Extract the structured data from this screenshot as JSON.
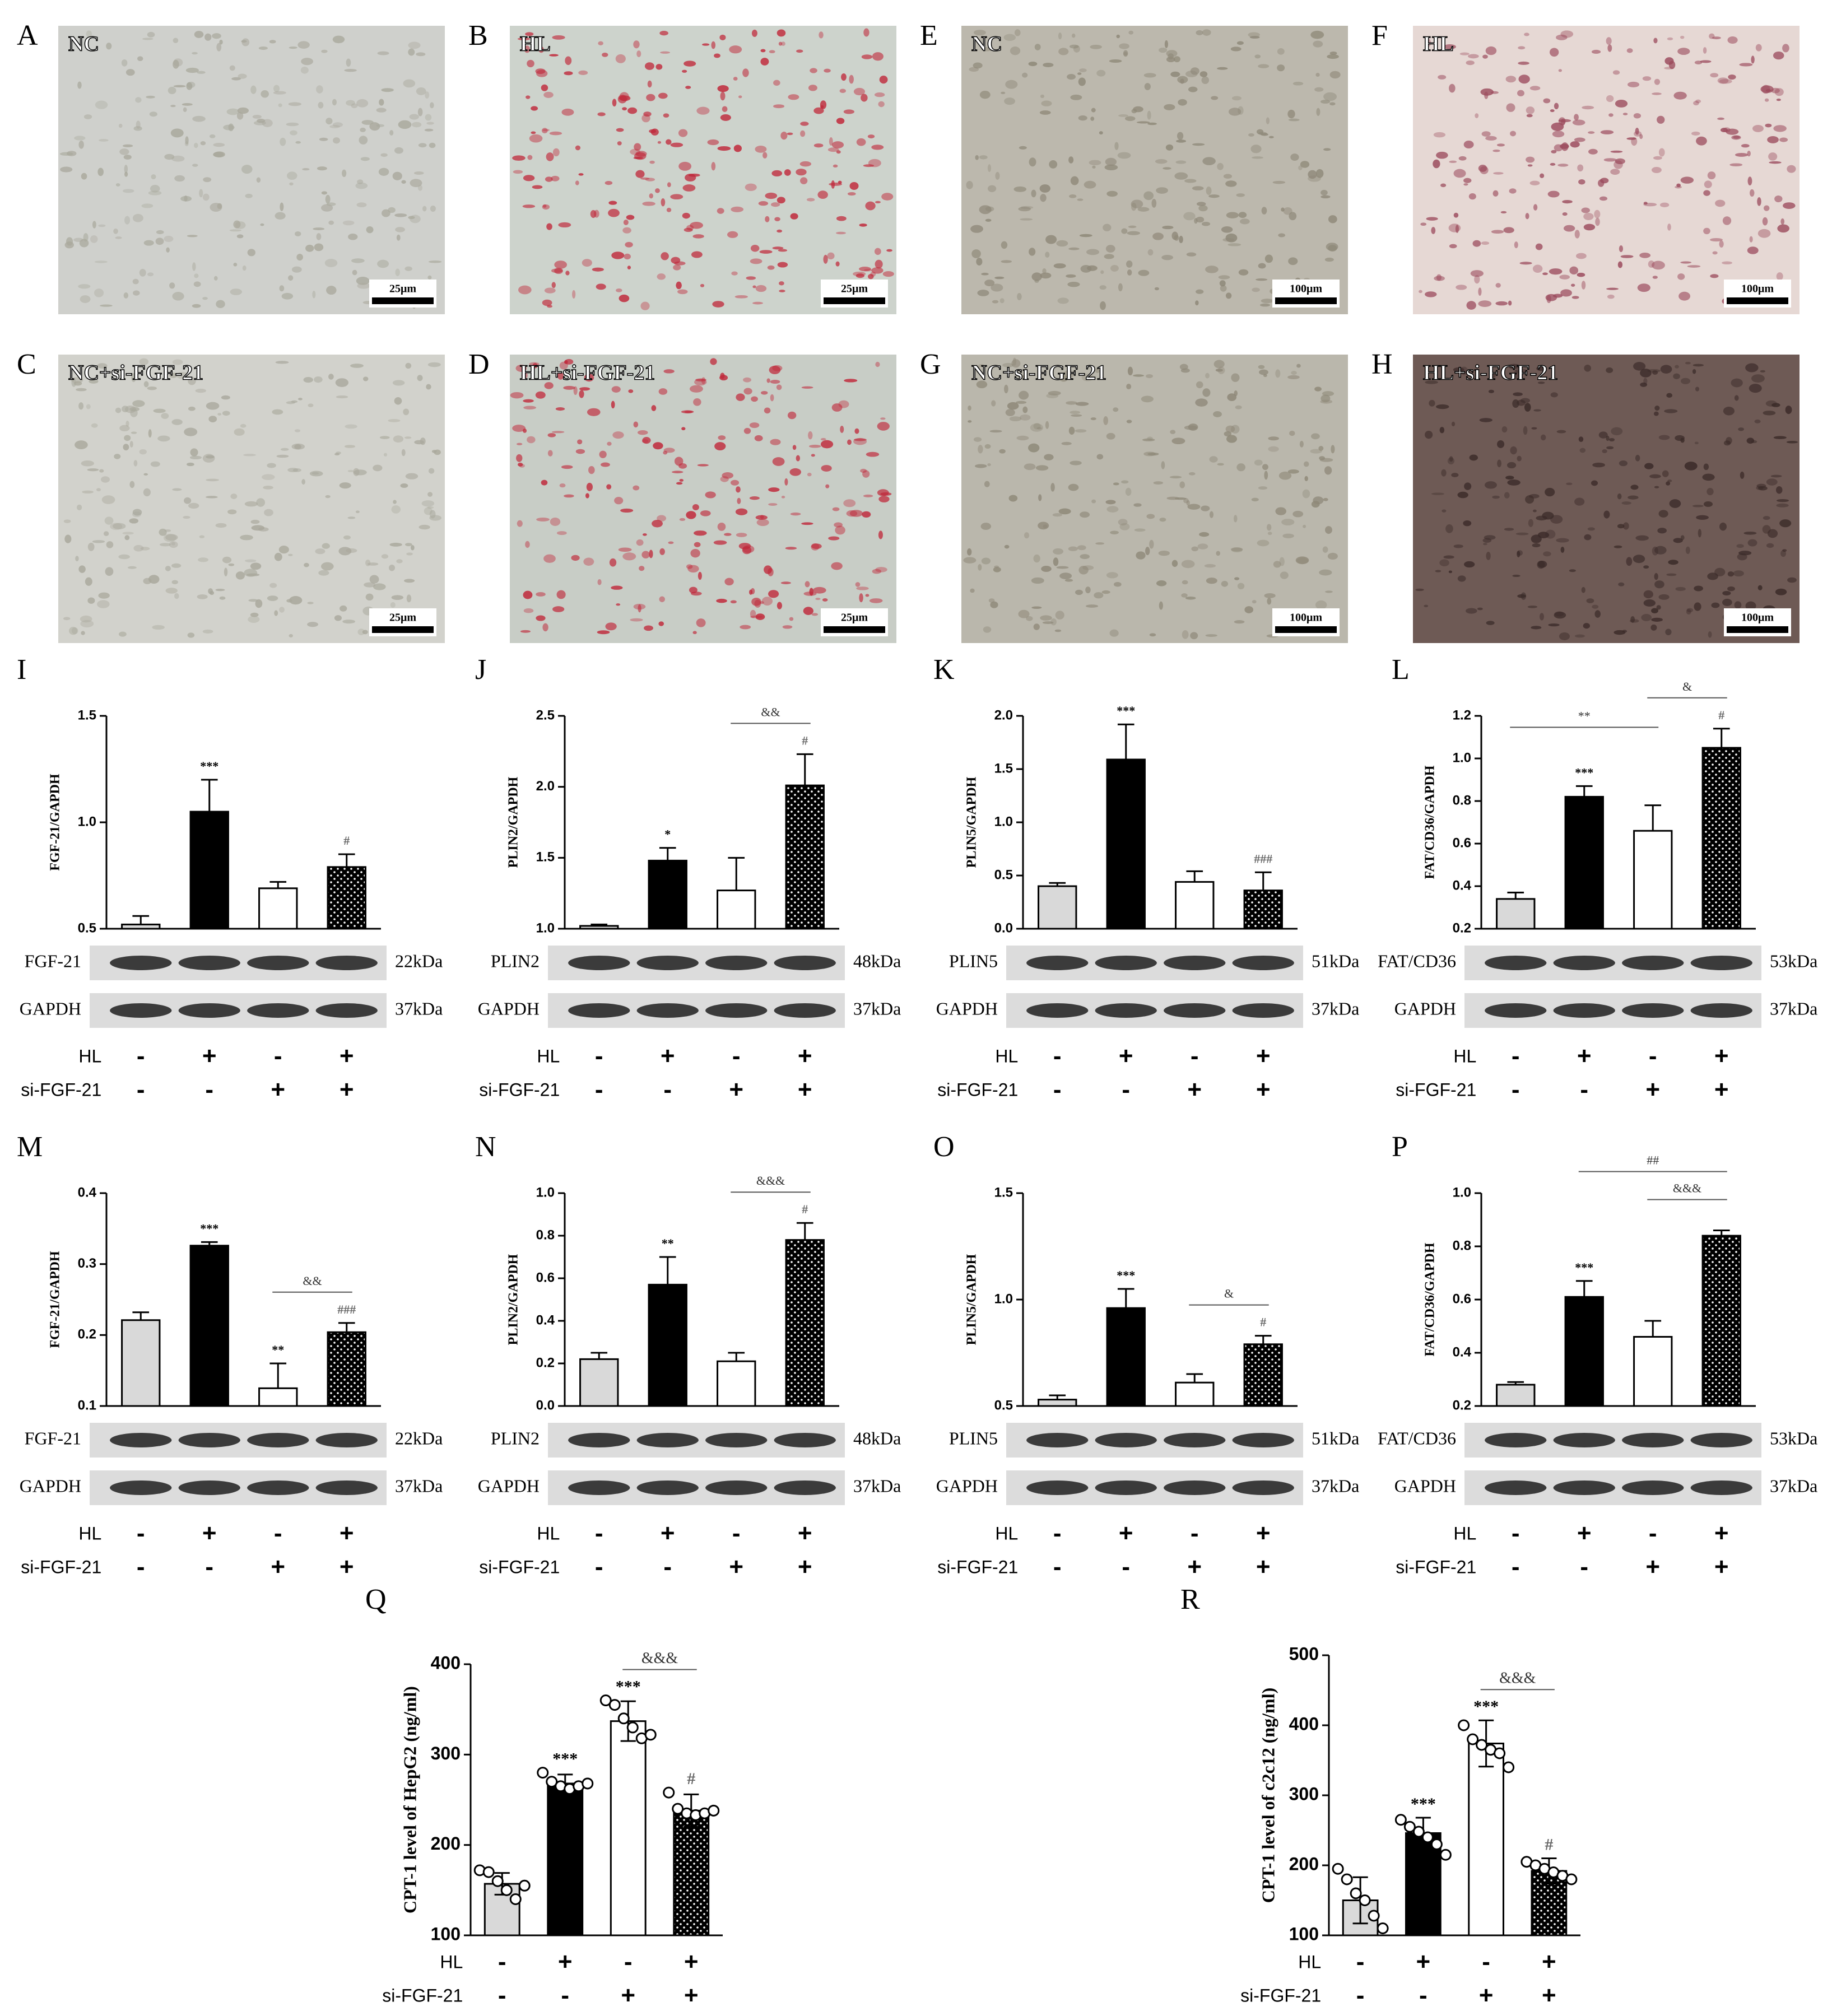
{
  "images": [
    {
      "letter": "A",
      "label": "NC",
      "scale_bar": "25μm"
    },
    {
      "letter": "B",
      "label": "HL",
      "scale_bar": "25μm"
    },
    {
      "letter": "E",
      "label": "NC",
      "scale_bar": "100μm"
    },
    {
      "letter": "F",
      "label": "HL",
      "scale_bar": "100μm"
    },
    {
      "letter": "C",
      "label": "NC+si-FGF-21",
      "scale_bar": "25μm"
    },
    {
      "letter": "D",
      "label": "HL+si-FGF-21",
      "scale_bar": "25μm"
    },
    {
      "letter": "G",
      "label": "NC+si-FGF-21",
      "scale_bar": "100μm"
    },
    {
      "letter": "H",
      "label": "HL+si-FGF-21",
      "scale_bar": "100μm"
    }
  ],
  "chart_data": [
    {
      "type": "bar",
      "letter": "I",
      "y_label": "FGF-21/GAPDH",
      "ylim": [
        0.5,
        1.5
      ],
      "yticks": [
        0.5,
        {
          "value": 1,
          "label": "1.0"
        },
        1.5
      ],
      "values": [
        0.52,
        1.05,
        0.69,
        0.79
      ],
      "errors": [
        0.04,
        0.15,
        0.03,
        0.06
      ],
      "fills": [
        "#d9d9d9",
        "#000000",
        "#ffffff",
        "#000000"
      ],
      "hatch": [
        false,
        false,
        false,
        true
      ],
      "above": [
        null,
        "***",
        null,
        "#"
      ],
      "brackets": [],
      "blots": [
        {
          "name": "FGF-21",
          "size": "22kDa"
        },
        {
          "name": "GAPDH",
          "size": "37kDa"
        }
      ],
      "conditions": [
        {
          "name": "HL",
          "marks": [
            "-",
            "+",
            "-",
            "+"
          ]
        },
        {
          "name": "si-FGF-21",
          "marks": [
            "-",
            "-",
            "+",
            "+"
          ]
        }
      ]
    },
    {
      "type": "bar",
      "letter": "J",
      "y_label": "PLIN2/GAPDH",
      "ylim": [
        1,
        2.5
      ],
      "yticks": [
        {
          "value": 1,
          "label": "1.0"
        },
        1.5,
        {
          "value": 2,
          "label": "2.0"
        },
        2.5
      ],
      "values": [
        1.02,
        1.48,
        1.27,
        2.01
      ],
      "errors": [
        0.01,
        0.09,
        0.23,
        0.22
      ],
      "fills": [
        "#d9d9d9",
        "#000000",
        "#ffffff",
        "#000000"
      ],
      "hatch": [
        false,
        false,
        false,
        true
      ],
      "above": [
        null,
        "*",
        null,
        "#"
      ],
      "brackets": [
        {
          "from": 2,
          "to": 3,
          "text": "&&"
        }
      ],
      "blots": [
        {
          "name": "PLIN2",
          "size": "48kDa"
        },
        {
          "name": "GAPDH",
          "size": "37kDa"
        }
      ],
      "conditions": [
        {
          "name": "HL",
          "marks": [
            "-",
            "+",
            "-",
            "+"
          ]
        },
        {
          "name": "si-FGF-21",
          "marks": [
            "-",
            "-",
            "+",
            "+"
          ]
        }
      ]
    },
    {
      "type": "bar",
      "letter": "K",
      "y_label": "PLIN5/GAPDH",
      "ylim": [
        0,
        2
      ],
      "yticks": [
        {
          "value": 0,
          "label": "0.0"
        },
        0.5,
        {
          "value": 1,
          "label": "1.0"
        },
        1.5,
        {
          "value": 2,
          "label": "2.0"
        }
      ],
      "values": [
        0.4,
        1.59,
        0.44,
        0.36
      ],
      "errors": [
        0.03,
        0.33,
        0.1,
        0.17
      ],
      "fills": [
        "#d9d9d9",
        "#000000",
        "#ffffff",
        "#000000"
      ],
      "hatch": [
        false,
        false,
        false,
        true
      ],
      "above": [
        null,
        "***",
        null,
        "###"
      ],
      "brackets": [],
      "blots": [
        {
          "name": "PLIN5",
          "size": "51kDa"
        },
        {
          "name": "GAPDH",
          "size": "37kDa"
        }
      ],
      "conditions": [
        {
          "name": "HL",
          "marks": [
            "-",
            "+",
            "-",
            "+"
          ]
        },
        {
          "name": "si-FGF-21",
          "marks": [
            "-",
            "-",
            "+",
            "+"
          ]
        }
      ]
    },
    {
      "type": "bar",
      "letter": "L",
      "y_label": "FAT/CD36/GAPDH",
      "ylim": [
        0.2,
        1.2
      ],
      "yticks": [
        0.2,
        0.4,
        0.6,
        0.8,
        {
          "value": 1,
          "label": "1.0"
        },
        1.2
      ],
      "values": [
        0.34,
        0.82,
        0.66,
        1.05
      ],
      "errors": [
        0.03,
        0.05,
        0.12,
        0.09
      ],
      "fills": [
        "#d9d9d9",
        "#000000",
        "#ffffff",
        "#000000"
      ],
      "hatch": [
        false,
        false,
        false,
        true
      ],
      "above": [
        null,
        "***",
        null,
        "#"
      ],
      "brackets": [
        {
          "from": 0,
          "to": 2,
          "text": "**"
        },
        {
          "from": 2,
          "to": 3,
          "text": "&"
        }
      ],
      "blots": [
        {
          "name": "FAT/CD36",
          "size": "53kDa"
        },
        {
          "name": "GAPDH",
          "size": "37kDa"
        }
      ],
      "conditions": [
        {
          "name": "HL",
          "marks": [
            "-",
            "+",
            "-",
            "+"
          ]
        },
        {
          "name": "si-FGF-21",
          "marks": [
            "-",
            "-",
            "+",
            "+"
          ]
        }
      ]
    },
    {
      "type": "bar",
      "letter": "M",
      "y_label": "FGF-21/GAPDH",
      "ylim": [
        0.1,
        0.4
      ],
      "yticks": [
        0.1,
        0.2,
        0.3,
        0.4
      ],
      "values": [
        0.221,
        0.326,
        0.125,
        0.204
      ],
      "errors": [
        0.011,
        0.005,
        0.035,
        0.013
      ],
      "fills": [
        "#d9d9d9",
        "#000000",
        "#ffffff",
        "#000000"
      ],
      "hatch": [
        false,
        false,
        false,
        true
      ],
      "above": [
        null,
        "***",
        "**",
        "###"
      ],
      "brackets": [
        {
          "from": 2,
          "to": 3,
          "text": "&&"
        }
      ],
      "blots": [
        {
          "name": "FGF-21",
          "size": "22kDa"
        },
        {
          "name": "GAPDH",
          "size": "37kDa"
        }
      ],
      "conditions": [
        {
          "name": "HL",
          "marks": [
            "-",
            "+",
            "-",
            "+"
          ]
        },
        {
          "name": "si-FGF-21",
          "marks": [
            "-",
            "-",
            "+",
            "+"
          ]
        }
      ]
    },
    {
      "type": "bar",
      "letter": "N",
      "y_label": "PLIN2/GAPDH",
      "ylim": [
        0,
        1
      ],
      "yticks": [
        {
          "value": 0,
          "label": "0.0"
        },
        0.2,
        0.4,
        0.6,
        0.8,
        {
          "value": 1,
          "label": "1.0"
        }
      ],
      "values": [
        0.22,
        0.57,
        0.21,
        0.78
      ],
      "errors": [
        0.03,
        0.13,
        0.04,
        0.08
      ],
      "fills": [
        "#d9d9d9",
        "#000000",
        "#ffffff",
        "#000000"
      ],
      "hatch": [
        false,
        false,
        false,
        true
      ],
      "above": [
        null,
        "**",
        null,
        "#"
      ],
      "brackets": [
        {
          "from": 2,
          "to": 3,
          "text": "&&&"
        }
      ],
      "blots": [
        {
          "name": "PLIN2",
          "size": "48kDa"
        },
        {
          "name": "GAPDH",
          "size": "37kDa"
        }
      ],
      "conditions": [
        {
          "name": "HL",
          "marks": [
            "-",
            "+",
            "-",
            "+"
          ]
        },
        {
          "name": "si-FGF-21",
          "marks": [
            "-",
            "-",
            "+",
            "+"
          ]
        }
      ]
    },
    {
      "type": "bar",
      "letter": "O",
      "y_label": "PLIN5/GAPDH",
      "ylim": [
        0.5,
        1.5
      ],
      "yticks": [
        0.5,
        {
          "value": 1,
          "label": "1.0"
        },
        1.5
      ],
      "values": [
        0.53,
        0.96,
        0.61,
        0.79
      ],
      "errors": [
        0.02,
        0.09,
        0.04,
        0.04
      ],
      "fills": [
        "#d9d9d9",
        "#000000",
        "#ffffff",
        "#000000"
      ],
      "hatch": [
        false,
        false,
        false,
        true
      ],
      "above": [
        null,
        "***",
        null,
        "#"
      ],
      "brackets": [
        {
          "from": 2,
          "to": 3,
          "text": "&"
        }
      ],
      "blots": [
        {
          "name": "PLIN5",
          "size": "51kDa"
        },
        {
          "name": "GAPDH",
          "size": "37kDa"
        }
      ],
      "conditions": [
        {
          "name": "HL",
          "marks": [
            "-",
            "+",
            "-",
            "+"
          ]
        },
        {
          "name": "si-FGF-21",
          "marks": [
            "-",
            "-",
            "+",
            "+"
          ]
        }
      ]
    },
    {
      "type": "bar",
      "letter": "P",
      "y_label": "FAT/CD36/GAPDH",
      "ylim": [
        0.2,
        1
      ],
      "yticks": [
        0.2,
        0.4,
        0.6,
        0.8,
        {
          "value": 1,
          "label": "1.0"
        }
      ],
      "values": [
        0.28,
        0.61,
        0.46,
        0.84
      ],
      "errors": [
        0.01,
        0.06,
        0.06,
        0.02
      ],
      "fills": [
        "#d9d9d9",
        "#000000",
        "#ffffff",
        "#000000"
      ],
      "hatch": [
        false,
        false,
        false,
        true
      ],
      "above": [
        null,
        "***",
        null,
        null
      ],
      "brackets": [
        {
          "from": 1,
          "to": 3,
          "text": "##"
        },
        {
          "from": 2,
          "to": 3,
          "text": "&&&"
        }
      ],
      "blots": [
        {
          "name": "FAT/CD36",
          "size": "53kDa"
        },
        {
          "name": "GAPDH",
          "size": "37kDa"
        }
      ],
      "conditions": [
        {
          "name": "HL",
          "marks": [
            "-",
            "+",
            "-",
            "+"
          ]
        },
        {
          "name": "si-FGF-21",
          "marks": [
            "-",
            "-",
            "+",
            "+"
          ]
        }
      ]
    },
    {
      "type": "bar",
      "letter": "Q",
      "y_label": "CPT-1 level of HepG2 (ng/ml)",
      "ylim": [
        100,
        400
      ],
      "yticks": [
        100,
        200,
        300,
        400
      ],
      "values": [
        157,
        268,
        337,
        238
      ],
      "errors": [
        12,
        10,
        22,
        18
      ],
      "points": [
        [
          172,
          170,
          160,
          150,
          140,
          155
        ],
        [
          280,
          270,
          265,
          262,
          265,
          268
        ],
        [
          360,
          355,
          340,
          330,
          318,
          322
        ],
        [
          258,
          240,
          235,
          233,
          235,
          238
        ]
      ],
      "fills": [
        "#d9d9d9",
        "#000000",
        "#ffffff",
        "#000000"
      ],
      "hatch": [
        false,
        false,
        false,
        true
      ],
      "above": [
        null,
        "***",
        "***",
        "#"
      ],
      "brackets": [
        {
          "from": 2,
          "to": 3,
          "text": "&&&"
        }
      ],
      "blots": [],
      "conditions": [
        {
          "name": "HL",
          "marks": [
            "-",
            "+",
            "-",
            "+"
          ]
        },
        {
          "name": "si-FGF-21",
          "marks": [
            "-",
            "-",
            "+",
            "+"
          ]
        }
      ]
    },
    {
      "type": "bar",
      "letter": "R",
      "y_label": "CPT-1 level of c2c12 (ng/ml)",
      "ylim": [
        100,
        500
      ],
      "yticks": [
        100,
        200,
        300,
        400,
        500
      ],
      "values": [
        150,
        246,
        374,
        192
      ],
      "errors": [
        33,
        22,
        33,
        18
      ],
      "points": [
        [
          195,
          180,
          160,
          150,
          128,
          110
        ],
        [
          265,
          255,
          248,
          240,
          230,
          215
        ],
        [
          400,
          380,
          372,
          365,
          360,
          340
        ],
        [
          205,
          200,
          195,
          190,
          185,
          180
        ]
      ],
      "fills": [
        "#d9d9d9",
        "#000000",
        "#ffffff",
        "#000000"
      ],
      "hatch": [
        false,
        false,
        false,
        true
      ],
      "above": [
        null,
        "***",
        "***",
        "#"
      ],
      "brackets": [
        {
          "from": 2,
          "to": 3,
          "text": "&&&"
        }
      ],
      "blots": [],
      "conditions": [
        {
          "name": "HL",
          "marks": [
            "-",
            "+",
            "-",
            "+"
          ]
        },
        {
          "name": "si-FGF-21",
          "marks": [
            "-",
            "-",
            "+",
            "+"
          ]
        }
      ]
    }
  ]
}
